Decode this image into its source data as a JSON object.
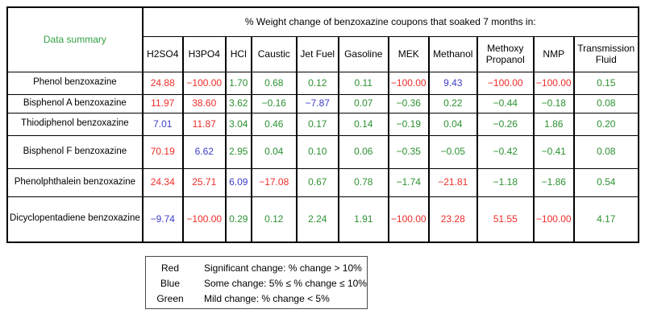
{
  "colors": {
    "red": "#ee2d28",
    "blue": "#3c3cc8",
    "green": "#2d9132",
    "title_green": "#32a046"
  },
  "table": {
    "corner_label": "Data summary",
    "group_header": "% Weight change of benzoxazine coupons that soaked 7 months in:",
    "columns": [
      "H2SO4",
      "H3PO4",
      "HCl",
      "Caustic",
      "Jet Fuel",
      "Gasoline",
      "MEK",
      "Methanol",
      "Methoxy Propanol",
      "NMP",
      "Transmission Fluid"
    ],
    "rows": [
      {
        "label": "Phenol benzoxazine",
        "values": [
          {
            "v": "24.88",
            "c": "red"
          },
          {
            "v": "−100.00",
            "c": "red"
          },
          {
            "v": "1.70",
            "c": "green"
          },
          {
            "v": "0.68",
            "c": "green"
          },
          {
            "v": "0.12",
            "c": "green"
          },
          {
            "v": "0.11",
            "c": "green"
          },
          {
            "v": "−100.00",
            "c": "red"
          },
          {
            "v": "9.43",
            "c": "blue"
          },
          {
            "v": "−100.00",
            "c": "red"
          },
          {
            "v": "−100.00",
            "c": "red"
          },
          {
            "v": "0.15",
            "c": "green"
          }
        ]
      },
      {
        "label": "Bisphenol A benzoxazine",
        "values": [
          {
            "v": "11.97",
            "c": "red"
          },
          {
            "v": "38.60",
            "c": "red"
          },
          {
            "v": "3.62",
            "c": "green"
          },
          {
            "v": "−0.16",
            "c": "green"
          },
          {
            "v": "−7.87",
            "c": "blue"
          },
          {
            "v": "0.07",
            "c": "green"
          },
          {
            "v": "−0.36",
            "c": "green"
          },
          {
            "v": "0.22",
            "c": "green"
          },
          {
            "v": "−0.44",
            "c": "green"
          },
          {
            "v": "−0.18",
            "c": "green"
          },
          {
            "v": "0.08",
            "c": "green"
          }
        ]
      },
      {
        "label": "Thiodiphenol benzoxazine",
        "values": [
          {
            "v": "7.01",
            "c": "blue"
          },
          {
            "v": "11.87",
            "c": "red"
          },
          {
            "v": "3.04",
            "c": "green"
          },
          {
            "v": "0.46",
            "c": "green"
          },
          {
            "v": "0.17",
            "c": "green"
          },
          {
            "v": "0.14",
            "c": "green"
          },
          {
            "v": "−0.19",
            "c": "green"
          },
          {
            "v": "0.04",
            "c": "green"
          },
          {
            "v": "−0.26",
            "c": "green"
          },
          {
            "v": "1.86",
            "c": "green"
          },
          {
            "v": "0.20",
            "c": "green"
          }
        ]
      },
      {
        "label": "Bisphenol F benzoxazine",
        "values": [
          {
            "v": "70.19",
            "c": "red"
          },
          {
            "v": "6.62",
            "c": "blue"
          },
          {
            "v": "2.95",
            "c": "green"
          },
          {
            "v": "0.04",
            "c": "green"
          },
          {
            "v": "0.10",
            "c": "green"
          },
          {
            "v": "0.06",
            "c": "green"
          },
          {
            "v": "−0.35",
            "c": "green"
          },
          {
            "v": "−0.05",
            "c": "green"
          },
          {
            "v": "−0.42",
            "c": "green"
          },
          {
            "v": "−0.41",
            "c": "green"
          },
          {
            "v": "0.08",
            "c": "green"
          }
        ]
      },
      {
        "label": "Phenolphthalein benzoxazine",
        "values": [
          {
            "v": "24.34",
            "c": "red"
          },
          {
            "v": "25.71",
            "c": "red"
          },
          {
            "v": "6.09",
            "c": "blue"
          },
          {
            "v": "−17.08",
            "c": "red"
          },
          {
            "v": "0.67",
            "c": "green"
          },
          {
            "v": "0.78",
            "c": "green"
          },
          {
            "v": "−1.74",
            "c": "green"
          },
          {
            "v": "−21.81",
            "c": "red"
          },
          {
            "v": "−1.18",
            "c": "green"
          },
          {
            "v": "−1.86",
            "c": "green"
          },
          {
            "v": "0.54",
            "c": "green"
          }
        ]
      },
      {
        "label": "Dicyclopentadiene benzoxazine",
        "values": [
          {
            "v": "−9.74",
            "c": "blue"
          },
          {
            "v": "−100.00",
            "c": "red"
          },
          {
            "v": "0.29",
            "c": "green"
          },
          {
            "v": "0.12",
            "c": "green"
          },
          {
            "v": "2.24",
            "c": "green"
          },
          {
            "v": "1.91",
            "c": "green"
          },
          {
            "v": "−100.00",
            "c": "red"
          },
          {
            "v": "23.28",
            "c": "red"
          },
          {
            "v": "51.55",
            "c": "red"
          },
          {
            "v": "−100.00",
            "c": "red"
          },
          {
            "v": "4.17",
            "c": "green"
          }
        ]
      }
    ]
  },
  "legend": {
    "rows": [
      {
        "label": "Red",
        "text": "Significant change:  % change > 10%"
      },
      {
        "label": "Blue",
        "text": "Some change: 5%  ≤ % change ≤ 10%"
      },
      {
        "label": "Green",
        "text": "Mild change:  % change < 5%"
      }
    ]
  }
}
